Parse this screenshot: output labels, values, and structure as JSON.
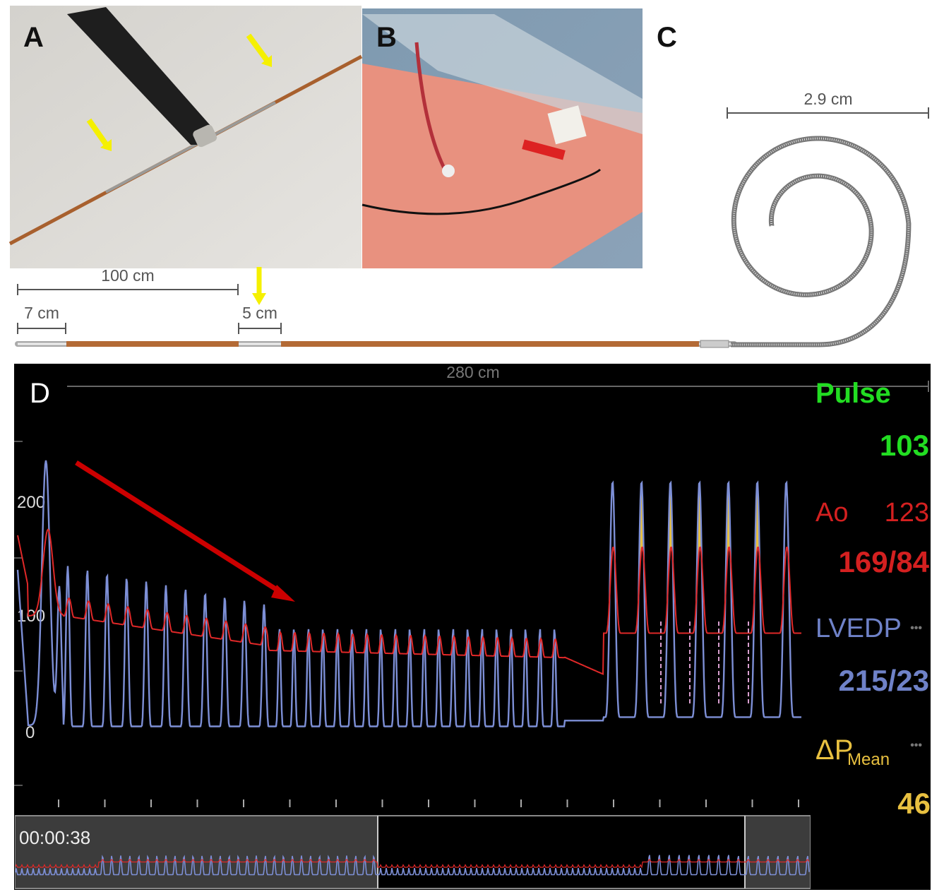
{
  "panel_labels": [
    "A",
    "B",
    "C",
    "D"
  ],
  "scale_bars": {
    "length_100": "100 cm",
    "length_7": "7 cm",
    "length_5": "5 cm",
    "diameter": "2.9 cm",
    "total": "280 cm"
  },
  "monitor": {
    "y_axis_labels": [
      "200",
      "100",
      "0"
    ],
    "pulse": {
      "label": "Pulse",
      "value": "103"
    },
    "ao": {
      "label": "Ao",
      "mean": "123",
      "systolic_diastolic": "169/84"
    },
    "lvedp": {
      "label": "LVEDP",
      "more": "•••",
      "systolic_diastolic": "215/23"
    },
    "delta_p": {
      "label": "ΔP",
      "subscript": "Mean",
      "more": "•••",
      "value": "46"
    },
    "timer": "00:00:38"
  }
}
